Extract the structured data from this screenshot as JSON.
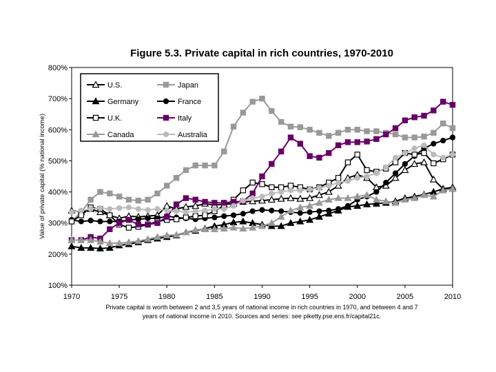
{
  "chart_data": {
    "type": "line",
    "title": "Figure 5.3. Private capital in rich countries, 1970-2010",
    "ylabel": "Value of private capital (% national income)",
    "xlabel": "",
    "caption_lines": [
      "Private capital is worth between 2 and 3,5 years of national income in rich countries in 1970, and between 4 and 7",
      "years of national income in 2010. Sources and series: see piketty.pse.ens.fr/capital21c."
    ],
    "xlim": [
      1970,
      2010
    ],
    "ylim": [
      100,
      800
    ],
    "x_ticks": [
      1970,
      1975,
      1980,
      1985,
      1990,
      1995,
      2000,
      2005,
      2010
    ],
    "y_ticks": [
      100,
      200,
      300,
      400,
      500,
      600,
      700,
      800
    ],
    "y_tick_labels": [
      "100%",
      "200%",
      "300%",
      "400%",
      "500%",
      "600%",
      "700%",
      "800%"
    ],
    "grid": false,
    "legend_position": "top-left",
    "x": [
      1970,
      1971,
      1972,
      1973,
      1974,
      1975,
      1976,
      1977,
      1978,
      1979,
      1980,
      1981,
      1982,
      1983,
      1984,
      1985,
      1986,
      1987,
      1988,
      1989,
      1990,
      1991,
      1992,
      1993,
      1994,
      1995,
      1996,
      1997,
      1998,
      1999,
      2000,
      2001,
      2002,
      2003,
      2004,
      2005,
      2006,
      2007,
      2008,
      2009,
      2010
    ],
    "series": [
      {
        "name": "U.S.",
        "color": "#000000",
        "marker": "triangle-open",
        "values": [
          340,
          335,
          345,
          335,
          325,
          315,
          322,
          320,
          322,
          325,
          355,
          345,
          352,
          355,
          362,
          358,
          360,
          362,
          368,
          370,
          372,
          375,
          378,
          380,
          378,
          380,
          390,
          400,
          420,
          445,
          455,
          445,
          415,
          420,
          445,
          470,
          490,
          495,
          440,
          410,
          410
        ]
      },
      {
        "name": "Japan",
        "color": "#999999",
        "marker": "square-filled",
        "values": [
          305,
          335,
          375,
          400,
          395,
          385,
          375,
          372,
          375,
          395,
          420,
          445,
          470,
          485,
          485,
          485,
          530,
          610,
          655,
          690,
          700,
          660,
          625,
          610,
          608,
          600,
          590,
          580,
          590,
          600,
          600,
          595,
          595,
          590,
          585,
          575,
          575,
          578,
          590,
          620,
          605
        ]
      },
      {
        "name": "Germany",
        "color": "#000000",
        "marker": "triangle-filled",
        "values": [
          225,
          220,
          220,
          218,
          220,
          228,
          232,
          238,
          245,
          250,
          255,
          260,
          270,
          275,
          282,
          290,
          295,
          302,
          305,
          300,
          295,
          290,
          290,
          300,
          305,
          310,
          320,
          330,
          340,
          352,
          355,
          360,
          362,
          365,
          370,
          380,
          385,
          392,
          400,
          410,
          415
        ]
      },
      {
        "name": "France",
        "color": "#000000",
        "marker": "circle-filled",
        "values": [
          310,
          305,
          308,
          305,
          305,
          305,
          310,
          312,
          315,
          315,
          322,
          318,
          315,
          312,
          315,
          318,
          322,
          325,
          330,
          338,
          342,
          340,
          338,
          335,
          332,
          335,
          338,
          340,
          345,
          355,
          375,
          385,
          400,
          430,
          460,
          490,
          515,
          540,
          555,
          565,
          575
        ]
      },
      {
        "name": "U.K.",
        "color": "#000000",
        "marker": "square-open",
        "values": [
          305,
          325,
          350,
          345,
          325,
          295,
          285,
          288,
          295,
          305,
          310,
          312,
          318,
          322,
          325,
          338,
          355,
          375,
          405,
          430,
          425,
          415,
          415,
          420,
          415,
          408,
          415,
          430,
          445,
          495,
          520,
          470,
          465,
          475,
          495,
          525,
          520,
          525,
          492,
          505,
          520
        ]
      },
      {
        "name": "Italy",
        "color": "#660066",
        "marker": "square-filled",
        "values": [
          245,
          245,
          255,
          250,
          280,
          300,
          310,
          295,
          295,
          300,
          320,
          360,
          380,
          375,
          368,
          365,
          365,
          368,
          370,
          395,
          450,
          490,
          530,
          575,
          555,
          515,
          510,
          525,
          550,
          560,
          560,
          562,
          570,
          585,
          605,
          630,
          640,
          645,
          662,
          690,
          680
        ]
      },
      {
        "name": "Canada",
        "color": "#999999",
        "marker": "triangle-filled",
        "values": [
          245,
          245,
          245,
          240,
          235,
          235,
          238,
          242,
          248,
          255,
          260,
          262,
          270,
          278,
          280,
          280,
          282,
          285,
          282,
          285,
          290,
          300,
          320,
          340,
          350,
          355,
          365,
          375,
          380,
          380,
          385,
          390,
          375,
          370,
          365,
          375,
          380,
          390,
          385,
          405,
          410
        ]
      },
      {
        "name": "Australia",
        "color": "#bbbbbb",
        "marker": "circle-filled",
        "values": [
          335,
          340,
          345,
          348,
          345,
          348,
          350,
          345,
          342,
          345,
          340,
          338,
          335,
          338,
          340,
          345,
          345,
          355,
          372,
          380,
          385,
          395,
          400,
          405,
          405,
          408,
          412,
          420,
          430,
          435,
          445,
          450,
          460,
          480,
          510,
          525,
          540,
          550,
          520,
          510,
          520
        ]
      }
    ]
  }
}
